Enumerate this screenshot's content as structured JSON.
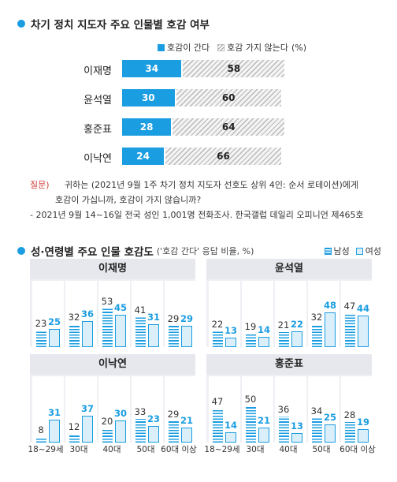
{
  "section1": {
    "title": "차기 정치 지도자 주요 인물별 호감 여부",
    "legend": {
      "yes": "호감이 간다",
      "no": "호감 가지 않는다",
      "unit": "(%)"
    }
  },
  "section2": {
    "title": "성·연령별 주요 인물 호감도",
    "subtitle": "('호감 간다' 응답 비율, %)",
    "legend": {
      "male": "남성",
      "female": "여성"
    }
  },
  "notes": {
    "q_label": "질문)",
    "q_line1": "귀하는 (2021년 9월 1주 차기 정치 지도자 선호도 상위 4인: 순서 로테이션)에게",
    "q_line2": "호감이 가십니까, 호감이 가지 않습니까?",
    "source": "- 2021년 9월 14~16일 전국 성인 1,001명 전화조사. 한국갤럽 데일리 오피니언 제465호"
  },
  "age_labels": [
    "18~29세",
    "30대",
    "40대",
    "50대",
    "60대 이상"
  ],
  "chart_data": [
    {
      "type": "bar",
      "title": "차기 정치 지도자 주요 인물별 호감 여부",
      "orientation": "horizontal",
      "stacked": true,
      "categories": [
        "이재명",
        "윤석열",
        "홍준표",
        "이낙연"
      ],
      "series": [
        {
          "name": "호감이 간다",
          "values": [
            34,
            30,
            28,
            24
          ],
          "color": "#1a9de1"
        },
        {
          "name": "호감 가지 않는다",
          "values": [
            58,
            60,
            64,
            66
          ],
          "color": "#b9b9b9"
        }
      ]
    },
    {
      "type": "bar",
      "title": "이재명",
      "categories": [
        "18~29세",
        "30대",
        "40대",
        "50대",
        "60대 이상"
      ],
      "series": [
        {
          "name": "남성",
          "values": [
            23,
            32,
            53,
            41,
            29
          ]
        },
        {
          "name": "여성",
          "values": [
            25,
            36,
            45,
            31,
            29
          ]
        }
      ]
    },
    {
      "type": "bar",
      "title": "윤석열",
      "categories": [
        "18~29세",
        "30대",
        "40대",
        "50대",
        "60대 이상"
      ],
      "series": [
        {
          "name": "남성",
          "values": [
            22,
            19,
            21,
            32,
            47
          ]
        },
        {
          "name": "여성",
          "values": [
            13,
            14,
            22,
            48,
            44
          ]
        }
      ]
    },
    {
      "type": "bar",
      "title": "이낙연",
      "categories": [
        "18~29세",
        "30대",
        "40대",
        "50대",
        "60대 이상"
      ],
      "series": [
        {
          "name": "남성",
          "values": [
            8,
            12,
            20,
            33,
            29
          ]
        },
        {
          "name": "여성",
          "values": [
            31,
            37,
            30,
            23,
            21
          ]
        }
      ]
    },
    {
      "type": "bar",
      "title": "홍준표",
      "categories": [
        "18~29세",
        "30대",
        "40대",
        "50대",
        "60대 이상"
      ],
      "series": [
        {
          "name": "남성",
          "values": [
            47,
            50,
            36,
            34,
            28
          ]
        },
        {
          "name": "여성",
          "values": [
            14,
            21,
            13,
            25,
            19
          ]
        }
      ]
    }
  ],
  "colors": {
    "accent": "#1a9de1",
    "female_fill": "#dbeffb",
    "hatch": "#b9b9b9",
    "panel_bg": "#eef0f4",
    "note_red": "#d0413d"
  }
}
